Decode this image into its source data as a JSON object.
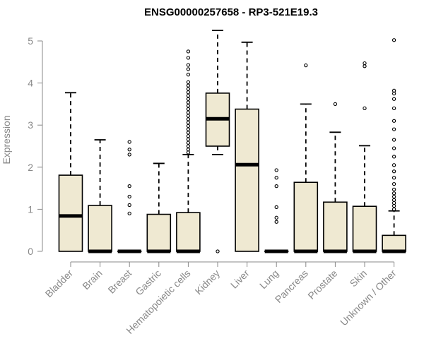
{
  "chart_data": {
    "type": "boxplot",
    "title": "ENSG00000257658 - RP3-521E19.3",
    "ylabel": "Expression",
    "xlabel": "",
    "ylim": [
      0,
      5.3
    ],
    "yticks": [
      0,
      1,
      2,
      3,
      4,
      5
    ],
    "colors": {
      "box_fill": "#efe9d2",
      "axis": "#888888",
      "stroke": "#000000"
    },
    "categories": [
      "Bladder",
      "Brain",
      "Breast",
      "Gastric",
      "Hematopoietic cells",
      "Kidney",
      "Liver",
      "Lung",
      "Pancreas",
      "Prostate",
      "Skin",
      "Unknown / Other"
    ],
    "boxes": [
      {
        "name": "Bladder",
        "q1": 0,
        "median": 0.84,
        "q3": 1.81,
        "whisker_low": 0,
        "whisker_high": 3.77,
        "outliers": []
      },
      {
        "name": "Brain",
        "q1": 0,
        "median": 0,
        "q3": 1.09,
        "whisker_low": 0,
        "whisker_high": 2.65,
        "outliers": []
      },
      {
        "name": "Breast",
        "q1": 0,
        "median": 0,
        "q3": 0,
        "whisker_low": 0,
        "whisker_high": 0,
        "outliers": [
          0.9,
          1.1,
          1.3,
          1.55,
          2.3,
          2.42,
          2.6
        ]
      },
      {
        "name": "Gastric",
        "q1": 0,
        "median": 0,
        "q3": 0.88,
        "whisker_low": 0,
        "whisker_high": 2.09,
        "outliers": []
      },
      {
        "name": "Hematopoietic cells",
        "q1": 0,
        "median": 0,
        "q3": 0.92,
        "whisker_low": 0,
        "whisker_high": 2.3,
        "outliers": [
          2.35,
          2.42,
          2.5,
          2.58,
          2.66,
          2.74,
          2.82,
          2.9,
          2.98,
          3.06,
          3.14,
          3.22,
          3.3,
          3.38,
          3.46,
          3.54,
          3.62,
          3.7,
          3.78,
          3.86,
          3.94,
          4.02,
          4.2,
          4.33,
          4.43,
          4.6,
          4.75
        ]
      },
      {
        "name": "Kidney",
        "q1": 2.5,
        "median": 3.15,
        "q3": 3.76,
        "whisker_low": 2.3,
        "whisker_high": 5.25,
        "outliers": [
          0
        ]
      },
      {
        "name": "Liver",
        "q1": 0,
        "median": 2.06,
        "q3": 3.38,
        "whisker_low": 0,
        "whisker_high": 4.97,
        "outliers": []
      },
      {
        "name": "Lung",
        "q1": 0,
        "median": 0,
        "q3": 0,
        "whisker_low": 0,
        "whisker_high": 0,
        "outliers": [
          0.7,
          0.8,
          1.05,
          1.55,
          1.75,
          1.93
        ]
      },
      {
        "name": "Pancreas",
        "q1": 0,
        "median": 0,
        "q3": 1.64,
        "whisker_low": 0,
        "whisker_high": 3.5,
        "outliers": [
          4.42
        ]
      },
      {
        "name": "Prostate",
        "q1": 0,
        "median": 0,
        "q3": 1.17,
        "whisker_low": 0,
        "whisker_high": 2.83,
        "outliers": [
          3.5
        ]
      },
      {
        "name": "Skin",
        "q1": 0,
        "median": 0,
        "q3": 1.07,
        "whisker_low": 0,
        "whisker_high": 2.51,
        "outliers": [
          3.4,
          4.4,
          4.47
        ]
      },
      {
        "name": "Unknown / Other",
        "q1": 0,
        "median": 0,
        "q3": 0.38,
        "whisker_low": 0,
        "whisker_high": 0.96,
        "outliers": [
          1.0,
          1.08,
          1.15,
          1.22,
          1.3,
          1.38,
          1.47,
          1.6,
          1.75,
          1.9,
          2.05,
          2.25,
          2.45,
          2.65,
          2.9,
          3.1,
          3.4,
          3.62,
          3.75,
          3.82,
          5.02
        ]
      }
    ]
  }
}
